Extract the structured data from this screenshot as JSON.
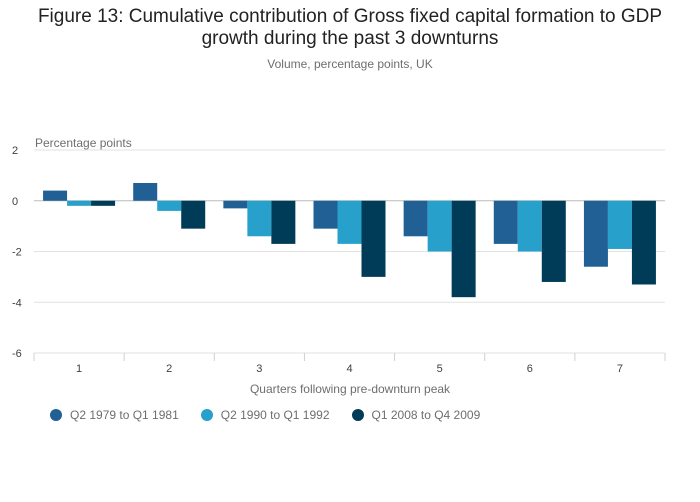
{
  "chart_data": {
    "type": "bar",
    "title_line1": "Figure 13: Cumulative contribution of Gross fixed capital formation to GDP",
    "title_line2": "growth during the past 3 downturns",
    "subtitle": "Volume, percentage points, UK",
    "ylabel": "Percentage points",
    "xlabel": "Quarters following pre-downturn peak",
    "categories": [
      "1",
      "2",
      "3",
      "4",
      "5",
      "6",
      "7"
    ],
    "ylim": [
      -6,
      2
    ],
    "yticks": [
      2,
      0,
      -2,
      -4,
      -6
    ],
    "grid": true,
    "legend_position": "bottom-left",
    "series": [
      {
        "name": "Q2 1979 to Q1 1981",
        "color": "#206095",
        "values": [
          0.4,
          0.7,
          -0.3,
          -1.1,
          -1.4,
          -1.7,
          -2.6
        ]
      },
      {
        "name": "Q2 1990 to Q1 1992",
        "color": "#27a0cc",
        "values": [
          -0.2,
          -0.4,
          -1.4,
          -1.7,
          -2.0,
          -2.0,
          -1.9
        ]
      },
      {
        "name": "Q1 2008 to Q4 2009",
        "color": "#003c57",
        "values": [
          -0.2,
          -1.1,
          -1.7,
          -3.0,
          -3.8,
          -3.2,
          -3.3
        ]
      }
    ]
  }
}
